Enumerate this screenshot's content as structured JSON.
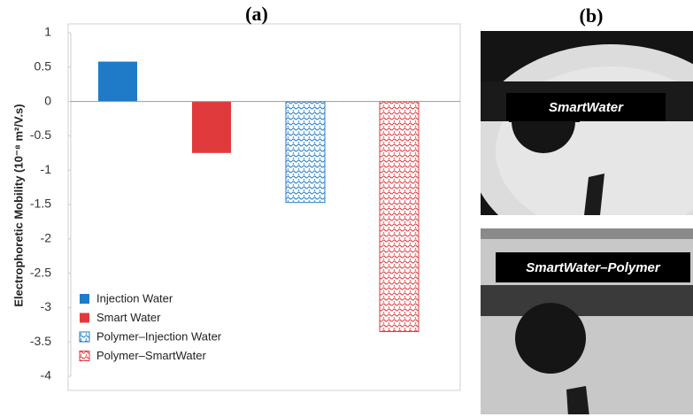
{
  "chart_data": {
    "type": "bar",
    "title": "(a)",
    "y_label": "Electrophoretic  Mobility (10⁻⁸ m²/V.s)",
    "series": [
      {
        "name": "Injection Water",
        "color": "#1f7bc8",
        "fill": "solid",
        "values": [
          0.58
        ]
      },
      {
        "name": "Smart Water",
        "color": "#e03a3c",
        "fill": "solid",
        "values": [
          -0.75
        ]
      },
      {
        "name": "Polymer–Injection Water",
        "color": "#1f7bc8",
        "fill": "pattern",
        "values": [
          -1.47
        ]
      },
      {
        "name": "Polymer–SmartWater",
        "color": "#e03a3c",
        "fill": "pattern",
        "values": [
          -3.35
        ]
      }
    ],
    "ylim": [
      -4,
      1
    ],
    "yticks": [
      1,
      0.5,
      0,
      -0.5,
      -1,
      -1.5,
      -2,
      -2.5,
      -3,
      -3.5,
      -4
    ],
    "grid": false,
    "legend": "lower left"
  },
  "panel_b": {
    "title": "(b)",
    "images": [
      {
        "label": "SmartWater"
      },
      {
        "label": "SmartWater–Polymer"
      }
    ]
  }
}
